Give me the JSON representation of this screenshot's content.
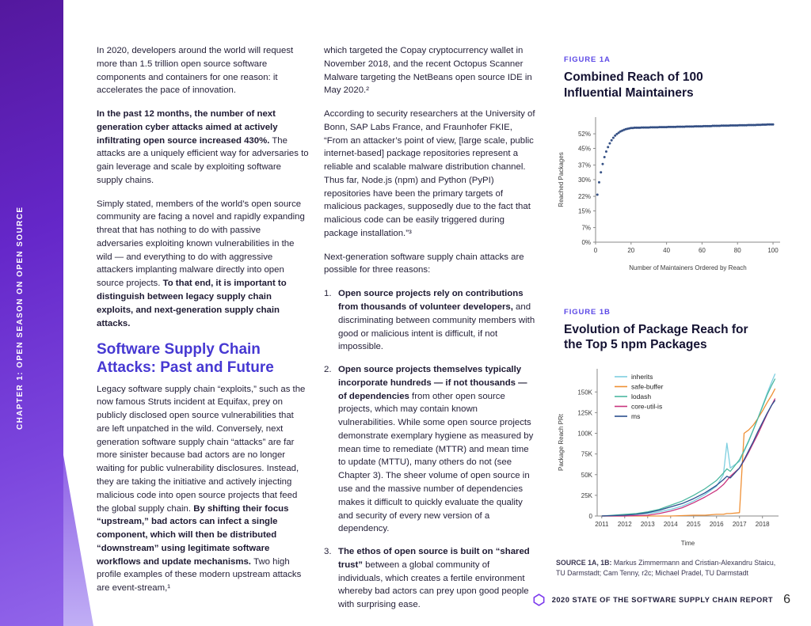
{
  "sidebar": {
    "chapter_label": "CHAPTER 1: OPEN SEASON ON OPEN SOURCE"
  },
  "col1": {
    "p1_runs": [
      {
        "text": "In 2020, developers around the world will request more than 1.5 trillion open source software components and containers for one reason: it accelerates the pace of innovation.",
        "bold": false
      }
    ],
    "p2_runs": [
      {
        "text": "In the past 12 months, the number of next generation cyber attacks aimed at actively infiltrating open source increased 430%.",
        "bold": true
      },
      {
        "text": " The attacks are a uniquely efficient way for adversaries to gain leverage and scale by exploiting software supply chains.",
        "bold": false
      }
    ],
    "p3_runs": [
      {
        "text": "Simply stated, members of the world’s open source community are facing a novel and rapidly expanding threat that has nothing to do with passive adversaries exploiting known vulnerabilities in the wild — and everything to do with aggressive attackers implanting malware directly into open source projects. ",
        "bold": false
      },
      {
        "text": "To that end, it is important to distinguish between legacy supply chain exploits, and next-generation supply chain attacks.",
        "bold": true
      }
    ],
    "heading": "Software Supply Chain Attacks: Past and Future",
    "p4_runs": [
      {
        "text": "Legacy software supply chain “exploits,” such as the now famous Struts incident at Equifax, prey on publicly disclosed open source vulnerabilities that are left unpatched in the wild. Conversely, next generation software supply chain “attacks” are far more sinister because bad actors are no longer waiting for public vulnerability disclosures. Instead, they are taking the initiative and actively injecting malicious code into open source projects that feed the global supply chain. ",
        "bold": false
      },
      {
        "text": "By shifting their focus “upstream,” bad actors can infect a single component, which will then be distributed “downstream” using legitimate software workflows and update mechanisms. ",
        "bold": true
      },
      {
        "text": "Two high profile examples of these modern upstream attacks are event-stream,¹",
        "bold": false
      }
    ]
  },
  "col2": {
    "p1_runs": [
      {
        "text": "which targeted the Copay cryptocurrency wallet in November 2018, and the recent Octopus Scanner Malware targeting the NetBeans open source IDE in May 2020.²",
        "bold": false
      }
    ],
    "p2_runs": [
      {
        "text": "According to security researchers at the University of Bonn, SAP Labs France, and Fraunhofer FKIE, “From an attacker’s point of view, [large scale, public internet-based] package repositories represent a reliable and scalable malware distribution channel. Thus far, Node.js (npm) and Python (PyPI) repositories have been the primary targets of malicious packages, supposedly due to the fact that malicious code can be easily triggered during package installation.”³",
        "bold": false
      }
    ],
    "p3_runs": [
      {
        "text": "Next-generation software supply chain attacks are possible for three reasons:",
        "bold": false
      }
    ],
    "list": [
      {
        "num": "1.",
        "runs": [
          {
            "text": "Open source projects rely on contributions from thousands of volunteer developers,",
            "bold": true
          },
          {
            "text": " and discriminating between community members with good or malicious intent is difficult, if not impossible.",
            "bold": false
          }
        ]
      },
      {
        "num": "2.",
        "runs": [
          {
            "text": "Open source projects themselves typically incorporate hundreds — if not thousands — of dependencies",
            "bold": true
          },
          {
            "text": " from other open source projects, which may contain known vulnerabilities. While some open source projects demonstrate exemplary hygiene as measured by mean time to remediate (MTTR) and mean time to update (MTTU), many others do not (see Chapter 3). The sheer volume of open source in use and the massive number of dependencies makes it difficult to quickly evaluate the quality and security of every new version of a dependency.",
            "bold": false
          }
        ]
      },
      {
        "num": "3.",
        "runs": [
          {
            "text": "The ethos of open source is built on “shared trust”",
            "bold": true
          },
          {
            "text": " between a global community of individuals, which creates a fertile environment whereby bad actors can prey upon good people with surprising ease.",
            "bold": false
          }
        ]
      }
    ]
  },
  "figures": {
    "fig1a_label": "FIGURE 1A",
    "fig1a_title": "Combined Reach of 100 Influential Maintainers",
    "fig1b_label": "FIGURE 1B",
    "fig1b_title": "Evolution of Package Reach for the Top 5 npm Packages",
    "source_runs": [
      {
        "text": "SOURCE 1A, 1B: ",
        "bold": true
      },
      {
        "text": "Markus Zimmermann and Cristian-Alexandru Staicu, TU Darmstadt; Cam Tenny, r2c; Michael Pradel, TU Darmstadt",
        "bold": false
      }
    ]
  },
  "footer": {
    "report_title": "2020 STATE OF THE SOFTWARE SUPPLY CHAIN REPORT",
    "page_number": "6",
    "brand_color": "#7c3aed"
  },
  "chart_data": [
    {
      "type": "scatter",
      "title": "Combined Reach of 100 Influential Maintainers",
      "xlabel": "Number of Maintainers Ordered by Reach",
      "ylabel": "Reached Packages",
      "xlim": [
        0,
        104
      ],
      "ylim": [
        0,
        60
      ],
      "x_ticks": [
        0,
        20,
        40,
        60,
        80,
        100
      ],
      "y_tick_values": [
        0,
        7,
        15,
        22,
        30,
        37,
        45,
        52
      ],
      "y_tick_labels": [
        "0%",
        "7%",
        "15%",
        "22%",
        "30%",
        "37%",
        "45%",
        "52%"
      ],
      "dot_color": "#26437c",
      "x_start": 1,
      "y_values": [
        22.8,
        28.7,
        33.5,
        37.5,
        40.8,
        43.5,
        45.6,
        47.4,
        48.9,
        50.1,
        51.1,
        51.9,
        52.5,
        53.1,
        53.5,
        53.9,
        54.2,
        54.4,
        54.6,
        54.8,
        54.8,
        54.9,
        54.9,
        54.9,
        54.9,
        55.0,
        55.0,
        55.0,
        55.0,
        55.0,
        55.1,
        55.1,
        55.1,
        55.1,
        55.1,
        55.2,
        55.2,
        55.2,
        55.2,
        55.2,
        55.3,
        55.3,
        55.3,
        55.3,
        55.3,
        55.4,
        55.4,
        55.4,
        55.4,
        55.4,
        55.5,
        55.5,
        55.5,
        55.5,
        55.5,
        55.6,
        55.6,
        55.6,
        55.6,
        55.6,
        55.7,
        55.7,
        55.7,
        55.7,
        55.7,
        55.8,
        55.8,
        55.8,
        55.8,
        55.8,
        55.9,
        55.9,
        55.9,
        55.9,
        55.9,
        56.0,
        56.0,
        56.0,
        56.0,
        56.0,
        56.1,
        56.1,
        56.1,
        56.1,
        56.1,
        56.2,
        56.2,
        56.2,
        56.2,
        56.2,
        56.3,
        56.3,
        56.3,
        56.4,
        56.4,
        56.4,
        56.5,
        56.5,
        56.5,
        56.5
      ]
    },
    {
      "type": "line",
      "title": "Evolution of Package Reach for the Top 5 npm Packages",
      "xlabel": "Time",
      "ylabel": "Package Reach PRt",
      "xlim": [
        2010.8,
        2018.7
      ],
      "ylim": [
        0,
        178
      ],
      "x_ticks": [
        2011,
        2012,
        2013,
        2014,
        2015,
        2016,
        2017,
        2018
      ],
      "y_tick_values": [
        0,
        25,
        50,
        75,
        100,
        125,
        150
      ],
      "y_tick_labels": [
        "0",
        "25K",
        "50K",
        "75K",
        "100K",
        "125K",
        "150K"
      ],
      "legend_position": "top-left",
      "x": [
        2011,
        2011.5,
        2012,
        2012.5,
        2013,
        2013.5,
        2014,
        2014.5,
        2015,
        2015.5,
        2016,
        2016.3,
        2016.45,
        2016.6,
        2017,
        2017.2,
        2017.4,
        2017.6,
        2017.8,
        2018,
        2018.2,
        2018.4,
        2018.55
      ],
      "series": [
        {
          "name": "inherits",
          "color": "#7ecfe0",
          "values": [
            0,
            0.5,
            1,
            2,
            3,
            5,
            8,
            12,
            18,
            26,
            36,
            50,
            88,
            58,
            66,
            78,
            90,
            104,
            118,
            133,
            148,
            162,
            172
          ]
        },
        {
          "name": "safe-buffer",
          "color": "#ef9036",
          "values": [
            0,
            0,
            0,
            0,
            0,
            0,
            0,
            0.5,
            1,
            1,
            2,
            2,
            3,
            3,
            4,
            100,
            104,
            110,
            118,
            127,
            137,
            146,
            154
          ]
        },
        {
          "name": "lodash",
          "color": "#4cb8a0",
          "values": [
            0,
            1,
            2,
            3,
            5,
            8,
            13,
            18,
            25,
            33,
            43,
            52,
            57,
            54,
            68,
            79,
            91,
            104,
            118,
            132,
            146,
            158,
            166
          ]
        },
        {
          "name": "core-util-is",
          "color": "#c9357f",
          "values": [
            0,
            0,
            0,
            0.5,
            1,
            3,
            6,
            10,
            16,
            23,
            31,
            38,
            43,
            48,
            58,
            67,
            77,
            88,
            99,
            111,
            123,
            134,
            142
          ]
        },
        {
          "name": "ms",
          "color": "#2b4f8e",
          "values": [
            0,
            0.5,
            1,
            2,
            4,
            7,
            11,
            15,
            21,
            28,
            37,
            44,
            48,
            46,
            58,
            68,
            79,
            90,
            102,
            113,
            124,
            134,
            140
          ]
        }
      ]
    }
  ]
}
